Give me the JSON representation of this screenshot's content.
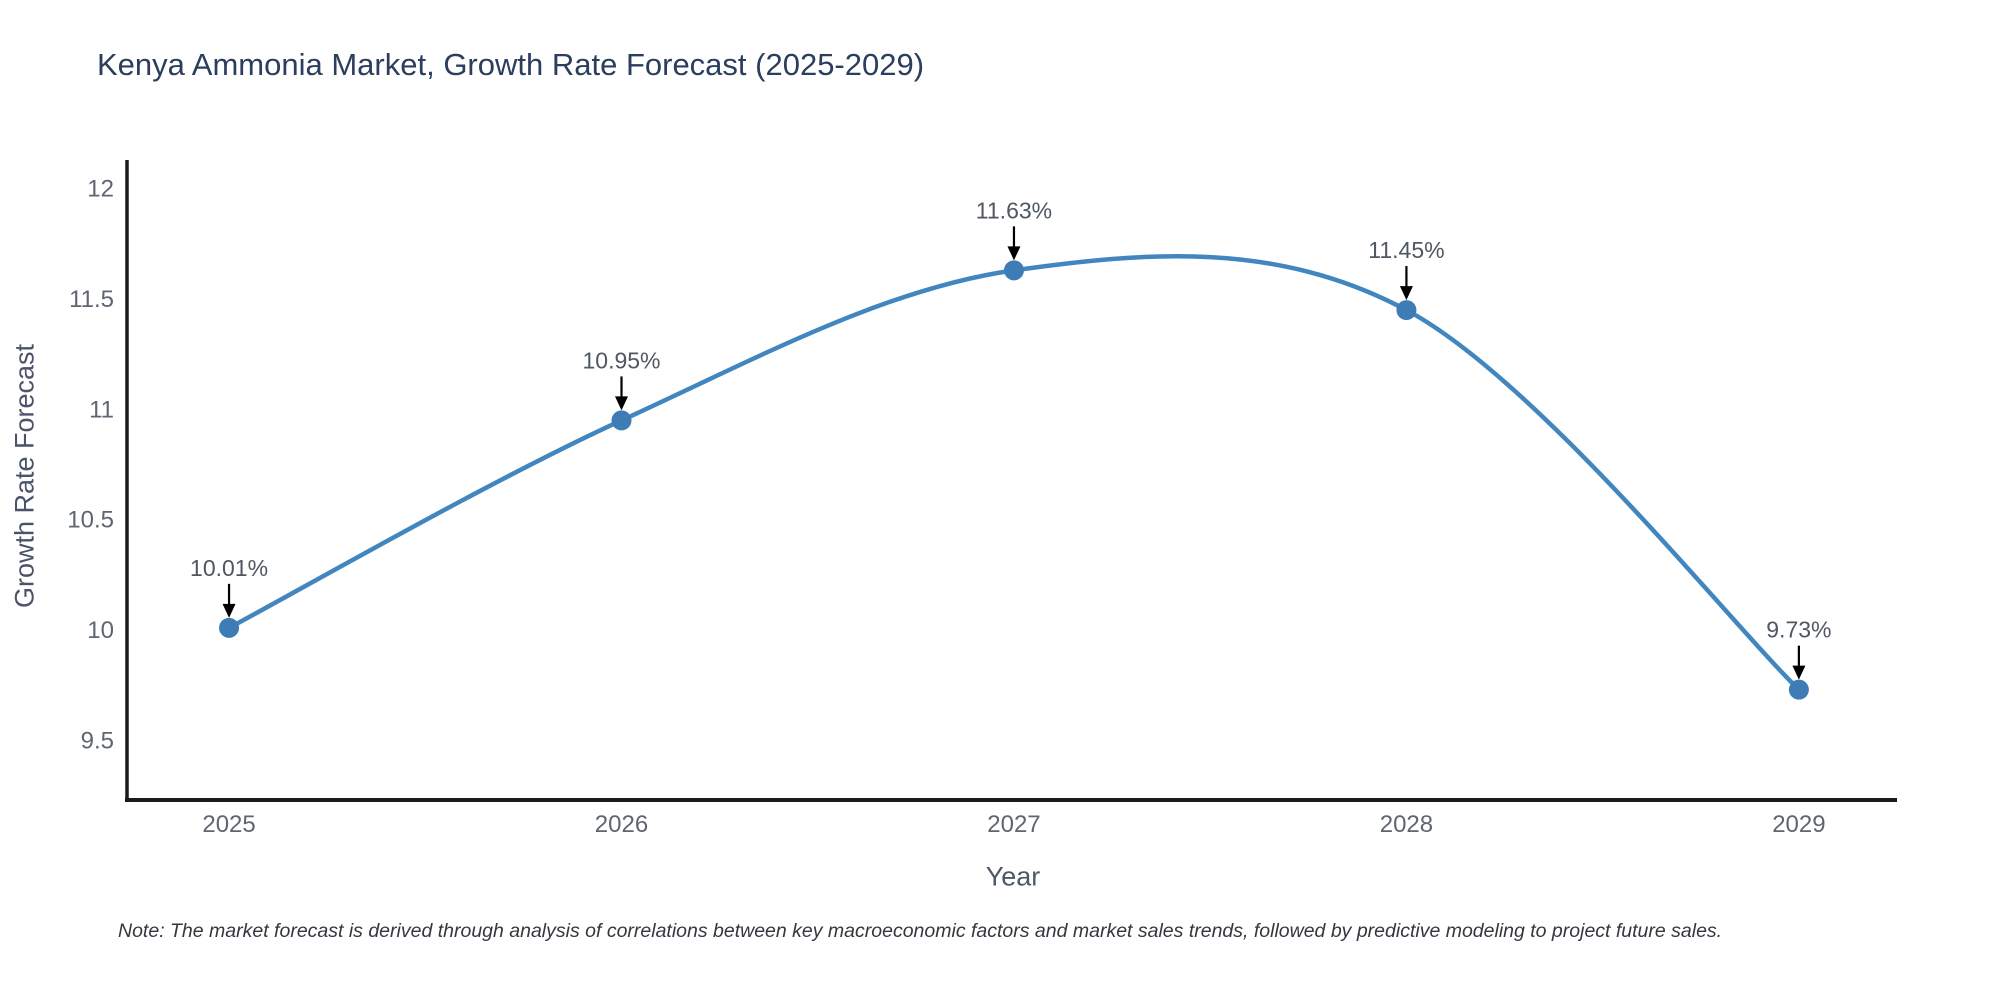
{
  "chart_data": {
    "type": "line",
    "title": "Kenya Ammonia Market, Growth Rate Forecast (2025-2029)",
    "xlabel": "Year",
    "ylabel": "Growth Rate Forecast",
    "x": [
      2025,
      2026,
      2027,
      2028,
      2029
    ],
    "values": [
      10.01,
      10.95,
      11.63,
      11.45,
      9.73
    ],
    "point_labels": [
      "10.01%",
      "10.95%",
      "11.63%",
      "11.45%",
      "9.73%"
    ],
    "series_name": "Growth Rate Forecast",
    "line_shape": "spline",
    "grid": false,
    "legend_position": "none",
    "xlim": [
      2024.74,
      2029.25
    ],
    "ylim": [
      9.23,
      12.13
    ],
    "yticks": {
      "values": [
        12,
        11.5,
        11,
        10.5,
        10,
        9.5
      ],
      "labels": [
        "12",
        "11.5",
        "11",
        "10.5",
        "10",
        "9.5"
      ]
    },
    "xticks": {
      "values": [
        2025,
        2026,
        2027,
        2028,
        2029
      ],
      "labels": [
        "2025",
        "2026",
        "2027",
        "2028",
        "2029"
      ]
    },
    "note": "Note: The market forecast is derived through analysis of correlations between key macroeconomic factors and market sales trends, followed by predictive modeling to project future sales.",
    "colors": {
      "line": "#4286bf",
      "marker": "#3d7cb4",
      "axis_line": "#1a1a1a",
      "tick_text": "#5f6670",
      "title_text": "#2c3e5d",
      "annotation_text": "#4f5760",
      "arrow": "#000000",
      "note_text": "#34383e"
    }
  }
}
